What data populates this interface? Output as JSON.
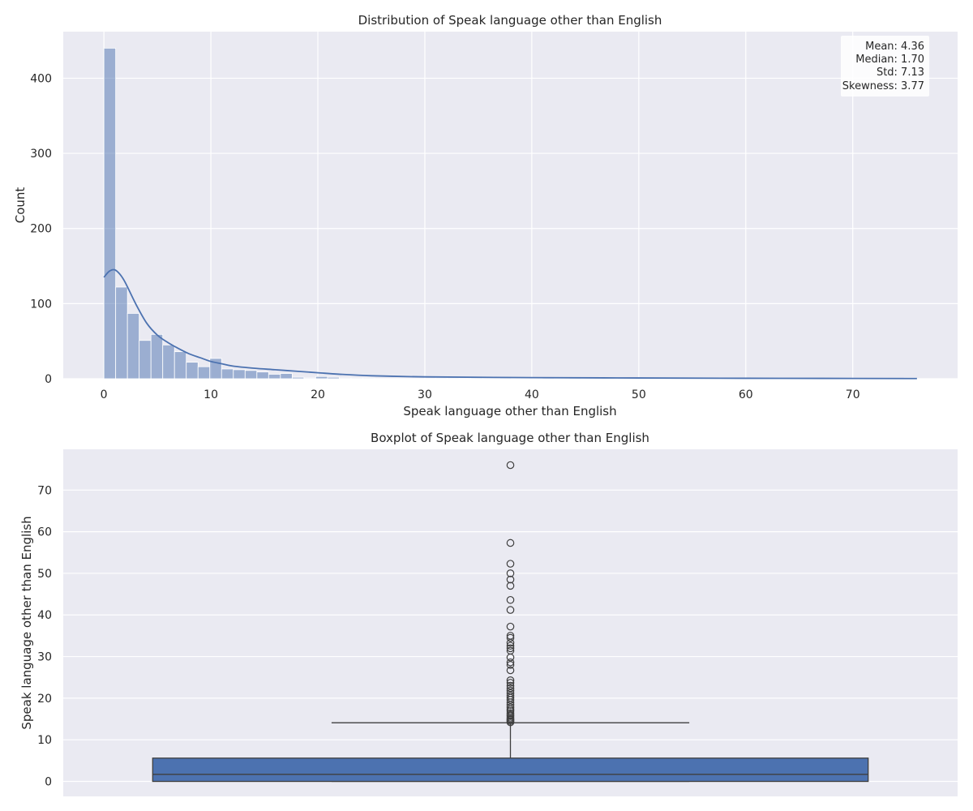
{
  "chart_data": [
    {
      "type": "bar",
      "subtype": "histogram-with-kde",
      "title": "Distribution of Speak language other than English",
      "xlabel": "Speak language other than English",
      "ylabel": "Count",
      "xlim": [
        -3.8,
        79.8
      ],
      "ylim": [
        0,
        462
      ],
      "xticks": [
        0,
        10,
        20,
        30,
        40,
        50,
        60,
        70
      ],
      "yticks": [
        0,
        100,
        200,
        300,
        400
      ],
      "grid": true,
      "bar_color": "#4c72b0",
      "bin_width": 1.1,
      "bins": [
        {
          "x0": 0.0,
          "count": 440
        },
        {
          "x0": 1.1,
          "count": 122
        },
        {
          "x0": 2.2,
          "count": 87
        },
        {
          "x0": 3.3,
          "count": 51
        },
        {
          "x0": 4.4,
          "count": 59
        },
        {
          "x0": 5.5,
          "count": 45
        },
        {
          "x0": 6.6,
          "count": 36
        },
        {
          "x0": 7.7,
          "count": 22
        },
        {
          "x0": 8.8,
          "count": 16
        },
        {
          "x0": 9.9,
          "count": 27
        },
        {
          "x0": 11.0,
          "count": 13
        },
        {
          "x0": 12.1,
          "count": 12
        },
        {
          "x0": 13.2,
          "count": 11
        },
        {
          "x0": 14.3,
          "count": 9
        },
        {
          "x0": 15.4,
          "count": 6
        },
        {
          "x0": 16.5,
          "count": 7
        },
        {
          "x0": 17.6,
          "count": 2
        },
        {
          "x0": 18.7,
          "count": 1
        },
        {
          "x0": 19.8,
          "count": 3
        },
        {
          "x0": 20.9,
          "count": 2
        },
        {
          "x0": 22.0,
          "count": 1
        },
        {
          "x0": 23.1,
          "count": 1
        },
        {
          "x0": 24.2,
          "count": 1
        },
        {
          "x0": 31.0,
          "count": 1
        },
        {
          "x0": 32.1,
          "count": 1
        },
        {
          "x0": 34.3,
          "count": 1
        },
        {
          "x0": 37.0,
          "count": 1
        },
        {
          "x0": 41.0,
          "count": 1
        },
        {
          "x0": 43.5,
          "count": 1
        },
        {
          "x0": 46.6,
          "count": 1
        },
        {
          "x0": 48.0,
          "count": 1
        },
        {
          "x0": 49.7,
          "count": 1
        },
        {
          "x0": 52.0,
          "count": 1
        },
        {
          "x0": 57.0,
          "count": 1
        },
        {
          "x0": 74.8,
          "count": 1
        }
      ],
      "kde": {
        "color": "#4c72b0",
        "x": [
          0,
          0.5,
          1,
          1.5,
          2,
          3,
          4,
          5,
          6,
          7,
          8,
          9,
          10,
          11,
          12,
          14,
          16,
          18,
          20,
          22,
          25,
          30,
          40,
          50,
          60,
          70,
          76
        ],
        "y": [
          135,
          143,
          145,
          139,
          128,
          99,
          74,
          58,
          48,
          40,
          33,
          28,
          23,
          20,
          17,
          14,
          12,
          10,
          8,
          6,
          4,
          2.5,
          1.5,
          1,
          0.6,
          0.4,
          0.3
        ]
      },
      "stats_box": {
        "placement": "top-right",
        "lines": [
          "Mean: 4.36",
          "Median: 1.70",
          "Std: 7.13",
          "Skewness: 3.77"
        ]
      }
    },
    {
      "type": "boxplot",
      "title": "Boxplot of Speak language other than English",
      "xlabel": "",
      "ylabel": "Speak language other than English",
      "ylim": [
        -3.6,
        79.8
      ],
      "yticks": [
        0,
        10,
        20,
        30,
        40,
        50,
        60,
        70
      ],
      "grid": true,
      "box_color": "#4c72b0",
      "whisker_low": 0,
      "q1": 0,
      "median": 1.7,
      "q3": 5.6,
      "whisker_high": 14.1,
      "outliers": [
        14.2,
        14.5,
        14.8,
        15.0,
        15.3,
        15.7,
        16.0,
        16.4,
        16.9,
        17.3,
        17.8,
        18.4,
        19.0,
        19.6,
        20.1,
        20.6,
        21.2,
        21.8,
        22.4,
        23.0,
        23.7,
        24.3,
        26.7,
        28.0,
        28.6,
        29.8,
        31.4,
        32.0,
        32.6,
        33.3,
        34.5,
        35.0,
        37.2,
        41.2,
        43.6,
        47.0,
        48.5,
        50.0,
        52.3,
        57.3,
        76.0
      ]
    }
  ]
}
